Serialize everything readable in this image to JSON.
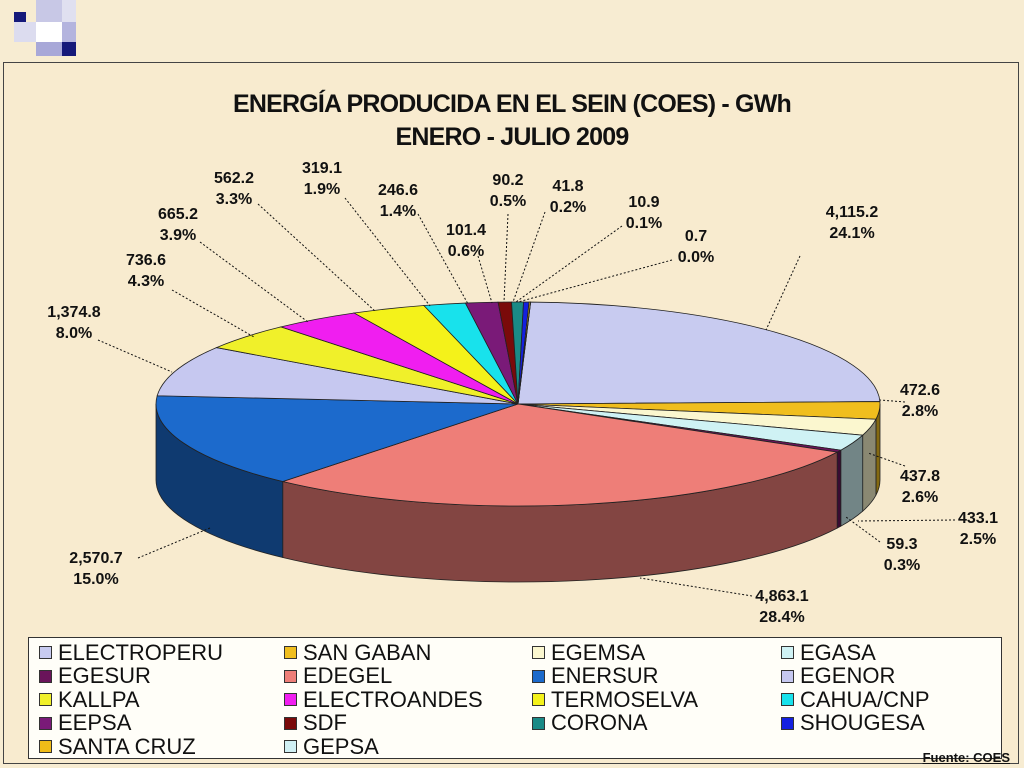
{
  "chart_data": {
    "type": "pie",
    "title": "ENERGÍA PRODUCIDA EN EL SEIN (COES) - GWh",
    "subtitle": "ENERO - JULIO 2009",
    "slices": [
      {
        "name": "ELECTROPERU",
        "value": "4,115.2",
        "percent": "24.1%",
        "v": 4115.2,
        "color": "#c8cbf0"
      },
      {
        "name": "SAN GABAN",
        "value": "472.6",
        "percent": "2.8%",
        "v": 472.6,
        "color": "#f0be1e"
      },
      {
        "name": "EGEMSA",
        "value": "437.8",
        "percent": "2.6%",
        "v": 437.8,
        "color": "#fbf7cf"
      },
      {
        "name": "EGASA",
        "value": "433.1",
        "percent": "2.5%",
        "v": 433.1,
        "color": "#cff2f4"
      },
      {
        "name": "EGESUR",
        "value": "59.3",
        "percent": "0.3%",
        "v": 59.3,
        "color": "#6a145a"
      },
      {
        "name": "EDEGEL",
        "value": "4,863.1",
        "percent": "28.4%",
        "v": 4863.1,
        "color": "#ee7e78"
      },
      {
        "name": "ENERSUR",
        "value": "2,570.7",
        "percent": "15.0%",
        "v": 2570.7,
        "color": "#1c6acc"
      },
      {
        "name": "EGENOR",
        "value": "1,374.8",
        "percent": "8.0%",
        "v": 1374.8,
        "color": "#c6c8f0"
      },
      {
        "name": "KALLPA",
        "value": "736.6",
        "percent": "4.3%",
        "v": 736.6,
        "color": "#f0f02a"
      },
      {
        "name": "ELECTROANDES",
        "value": "665.2",
        "percent": "3.9%",
        "v": 665.2,
        "color": "#f01ef0"
      },
      {
        "name": "TERMOSELVA",
        "value": "562.2",
        "percent": "3.3%",
        "v": 562.2,
        "color": "#f4f21a"
      },
      {
        "name": "CAHUA/CNP",
        "value": "319.1",
        "percent": "1.9%",
        "v": 319.1,
        "color": "#18e2ec"
      },
      {
        "name": "EEPSA",
        "value": "246.6",
        "percent": "1.4%",
        "v": 246.6,
        "color": "#7a1a78"
      },
      {
        "name": "SDF",
        "value": "101.4",
        "percent": "0.6%",
        "v": 101.4,
        "color": "#7a0a0a"
      },
      {
        "name": "CORONA",
        "value": "90.2",
        "percent": "0.5%",
        "v": 90.2,
        "color": "#1a8a86"
      },
      {
        "name": "SHOUGESA",
        "value": "41.8",
        "percent": "0.2%",
        "v": 41.8,
        "color": "#1420e0"
      },
      {
        "name": "SANTA CRUZ",
        "value": "10.9",
        "percent": "0.1%",
        "v": 10.9,
        "color": "#f0bc18"
      },
      {
        "name": "GEPSA",
        "value": "0.7",
        "percent": "0.0%",
        "v": 0.7,
        "color": "#d0f0f4"
      }
    ],
    "legend_position": "bottom"
  },
  "source": "Fuente: COES"
}
